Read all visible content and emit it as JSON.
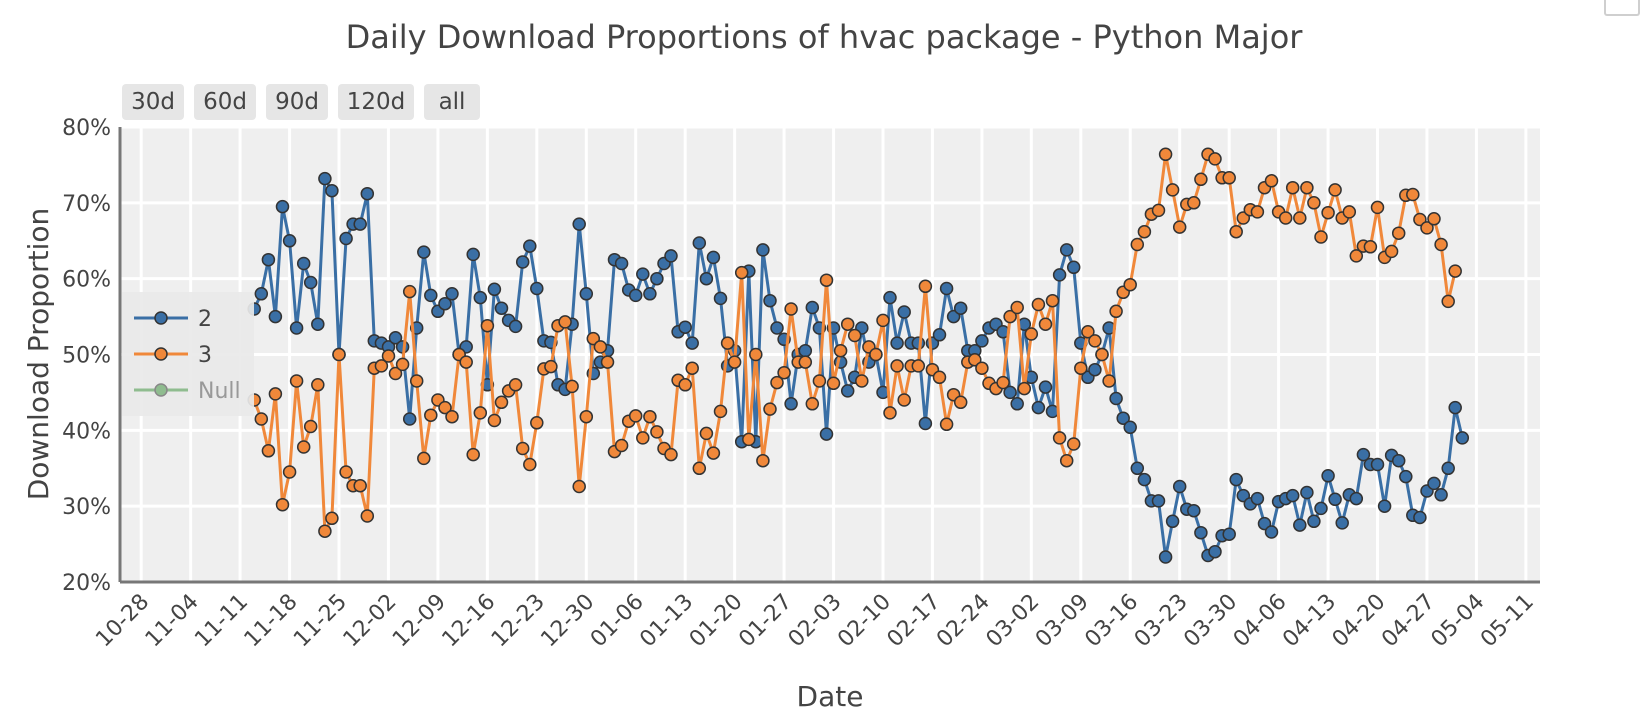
{
  "chart_data": {
    "type": "line",
    "title": "Daily Download Proportions of hvac package - Python Major",
    "xlabel": "Date",
    "ylabel": "Download Proportion",
    "xlim": [
      "2018-10-25",
      "2019-05-14"
    ],
    "ylim": [
      0.2,
      0.8
    ],
    "x_ticks": [
      "10-28",
      "11-04",
      "11-11",
      "11-18",
      "11-25",
      "12-02",
      "12-09",
      "12-16",
      "12-23",
      "12-30",
      "01-06",
      "01-13",
      "01-20",
      "01-27",
      "02-03",
      "02-10",
      "02-17",
      "02-24",
      "03-02",
      "03-09",
      "03-16",
      "03-23",
      "03-30",
      "04-06",
      "04-13",
      "04-20",
      "04-27",
      "05-04",
      "05-11"
    ],
    "y_ticks": [
      "20%",
      "30%",
      "40%",
      "50%",
      "60%",
      "70%",
      "80%"
    ],
    "grid": true,
    "legend_position": "left",
    "x_start": "2018-11-13",
    "series": [
      {
        "name": "2",
        "color": "#3a6fa5",
        "values": [
          0.56,
          0.58,
          0.625,
          0.55,
          0.695,
          0.65,
          0.535,
          0.62,
          0.595,
          0.54,
          0.732,
          0.716,
          0.5,
          0.653,
          0.672,
          0.672,
          0.712,
          0.518,
          0.515,
          0.51,
          0.522,
          0.51,
          0.415,
          0.535,
          0.635,
          0.578,
          0.557,
          0.567,
          0.58,
          0.5,
          0.51,
          0.632,
          0.575,
          0.46,
          0.586,
          0.561,
          0.545,
          0.537,
          0.622,
          0.643,
          0.587,
          0.518,
          0.516,
          0.46,
          0.454,
          0.54,
          0.672,
          0.58,
          0.475,
          0.49,
          0.505,
          0.625,
          0.62,
          0.585,
          0.578,
          0.606,
          0.58,
          0.6,
          0.62,
          0.63,
          0.53,
          0.536,
          0.515,
          0.647,
          0.6,
          0.628,
          0.574,
          0.485,
          0.505,
          0.385,
          0.61,
          0.385,
          0.638,
          0.571,
          0.535,
          0.52,
          0.435,
          0.5,
          0.505,
          0.562,
          0.535,
          0.395,
          0.535,
          0.49,
          0.452,
          0.47,
          0.535,
          0.49,
          0.5,
          0.45,
          0.575,
          0.515,
          0.556,
          0.515,
          0.515,
          0.409,
          0.515,
          0.526,
          0.587,
          0.55,
          0.561,
          0.505,
          0.505,
          0.518,
          0.535,
          0.54,
          0.53,
          0.45,
          0.435,
          0.54,
          0.47,
          0.43,
          0.457,
          0.425,
          0.605,
          0.638,
          0.615,
          0.515,
          0.47,
          0.48,
          0.5,
          0.535,
          0.442,
          0.416,
          0.404,
          0.35,
          0.335,
          0.307,
          0.307,
          0.233,
          0.28,
          0.326,
          0.296,
          0.294,
          0.265,
          0.235,
          0.24,
          0.261,
          0.263,
          0.335,
          0.314,
          0.303,
          0.31,
          0.277,
          0.266,
          0.306,
          0.31,
          0.314,
          0.275,
          0.318,
          0.28,
          0.297,
          0.34,
          0.309,
          0.278,
          0.315,
          0.31,
          0.368,
          0.355,
          0.355,
          0.3,
          0.367,
          0.36,
          0.339,
          0.288,
          0.285,
          0.32,
          0.33,
          0.315,
          0.35,
          0.43,
          0.39
        ]
      },
      {
        "name": "3",
        "color": "#f0883a",
        "values": [
          0.44,
          0.415,
          0.373,
          0.448,
          0.302,
          0.345,
          0.465,
          0.378,
          0.405,
          0.46,
          0.267,
          0.284,
          0.5,
          0.345,
          0.327,
          0.327,
          0.287,
          0.482,
          0.485,
          0.498,
          0.475,
          0.487,
          0.583,
          0.465,
          0.363,
          0.42,
          0.44,
          0.43,
          0.418,
          0.5,
          0.49,
          0.368,
          0.423,
          0.538,
          0.413,
          0.437,
          0.452,
          0.46,
          0.376,
          0.355,
          0.41,
          0.481,
          0.484,
          0.538,
          0.543,
          0.458,
          0.326,
          0.418,
          0.521,
          0.51,
          0.49,
          0.372,
          0.38,
          0.412,
          0.419,
          0.39,
          0.418,
          0.398,
          0.376,
          0.368,
          0.466,
          0.46,
          0.482,
          0.35,
          0.396,
          0.37,
          0.425,
          0.515,
          0.49,
          0.608,
          0.388,
          0.5,
          0.36,
          0.428,
          0.463,
          0.476,
          0.56,
          0.49,
          0.49,
          0.435,
          0.465,
          0.598,
          0.462,
          0.505,
          0.54,
          0.525,
          0.465,
          0.51,
          0.5,
          0.545,
          0.423,
          0.485,
          0.44,
          0.485,
          0.485,
          0.59,
          0.48,
          0.47,
          0.408,
          0.447,
          0.437,
          0.49,
          0.493,
          0.482,
          0.462,
          0.455,
          0.463,
          0.55,
          0.562,
          0.455,
          0.527,
          0.566,
          0.54,
          0.571,
          0.39,
          0.36,
          0.382,
          0.482,
          0.53,
          0.518,
          0.5,
          0.465,
          0.557,
          0.582,
          0.592,
          0.645,
          0.662,
          0.685,
          0.69,
          0.764,
          0.717,
          0.668,
          0.698,
          0.7,
          0.731,
          0.764,
          0.758,
          0.733,
          0.733,
          0.662,
          0.68,
          0.691,
          0.688,
          0.72,
          0.729,
          0.688,
          0.68,
          0.72,
          0.68,
          0.72,
          0.7,
          0.655,
          0.687,
          0.717,
          0.68,
          0.688,
          0.63,
          0.643,
          0.642,
          0.694,
          0.628,
          0.636,
          0.66,
          0.71,
          0.711,
          0.678,
          0.667,
          0.679,
          0.645,
          0.57,
          0.61
        ]
      },
      {
        "name": "Null",
        "color": "#8fbc8f",
        "values": []
      }
    ]
  },
  "range_buttons": [
    "30d",
    "60d",
    "90d",
    "120d",
    "all"
  ]
}
